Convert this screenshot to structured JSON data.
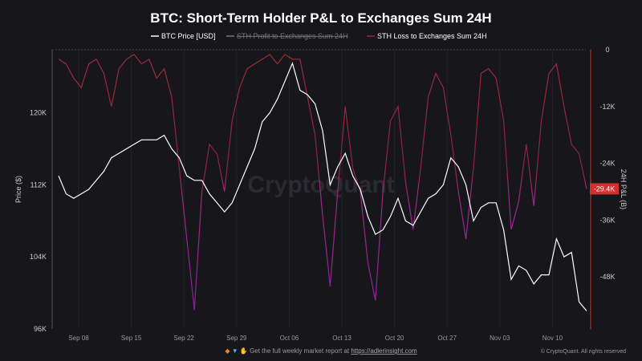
{
  "chart_data": {
    "type": "line",
    "title": "BTC: Short-Term Holder P&L to Exchanges Sum 24H",
    "legend": [
      {
        "name": "BTC Price [USD]",
        "color": "#ffffff",
        "hidden": false
      },
      {
        "name": "STH Profit to Exchanges Sum 24H",
        "color": "#777777",
        "hidden": true
      },
      {
        "name": "STH Loss to Exchanges Sum 24H",
        "color": "#9b2335",
        "hidden": false
      }
    ],
    "legend_placement": "top-center",
    "x_start": "2025-09-05",
    "x_ticks": [
      "Sep 08",
      "Sep 15",
      "Sep 22",
      "Sep 29",
      "Oct 06",
      "Oct 13",
      "Oct 20",
      "Oct 27",
      "Nov 03",
      "Nov 10"
    ],
    "ylabel": "Price ($)",
    "y_ticks": [
      "96K",
      "104K",
      "112K",
      "120K"
    ],
    "ylim": [
      96,
      127
    ],
    "y2label": "24H P&L (B)",
    "y2_ticks": [
      "0",
      "-12K",
      "-24K",
      "-36K",
      "-48K"
    ],
    "y2lim": [
      -59,
      0
    ],
    "y2_current_label": "-29.4K",
    "series": [
      {
        "name": "BTC Price [USD]",
        "axis": "left",
        "values": [
          113,
          111,
          110.5,
          111,
          111.5,
          112.5,
          113.5,
          115,
          115.5,
          116,
          116.5,
          117,
          117,
          117,
          117.5,
          116,
          115,
          113,
          112.5,
          112.5,
          111,
          110,
          109,
          110,
          112,
          114,
          116,
          119,
          120,
          121.5,
          123.5,
          125.5,
          122.5,
          122,
          121,
          118,
          112,
          114,
          115.5,
          113,
          111.5,
          108.5,
          106.5,
          107,
          108.5,
          110.5,
          108,
          107.5,
          109,
          110.5,
          111,
          112,
          115,
          114,
          112,
          108,
          109.5,
          110,
          110,
          107,
          101.5,
          103,
          102.5,
          101,
          102,
          102,
          106,
          104,
          104.5,
          99,
          98
        ]
      },
      {
        "name": "STH Loss to Exchanges Sum 24H",
        "axis": "right",
        "values": [
          -2,
          -3,
          -6,
          -8,
          -3,
          -2,
          -5,
          -12,
          -4,
          -2,
          -1,
          -3,
          -2,
          -6,
          -4,
          -10,
          -25,
          -40,
          -55,
          -30,
          -20,
          -22,
          -30,
          -15,
          -8,
          -4,
          -3,
          -2,
          -1,
          -3,
          -1,
          -2,
          -2,
          -10,
          -18,
          -35,
          -50,
          -30,
          -12,
          -25,
          -30,
          -45,
          -53,
          -30,
          -15,
          -12,
          -28,
          -38,
          -25,
          -10,
          -5,
          -8,
          -18,
          -30,
          -40,
          -25,
          -5,
          -4,
          -6,
          -15,
          -38,
          -32,
          -20,
          -33,
          -15,
          -5,
          -3,
          -12,
          -20,
          -22,
          -29.4
        ]
      }
    ],
    "grid": true
  },
  "watermark": "CryptoQuant",
  "footer": {
    "promo": "Get the full weekly market report at",
    "link": "https://adlerinsight.com",
    "copyright": "© CryptoQuant. All rights reserved"
  }
}
